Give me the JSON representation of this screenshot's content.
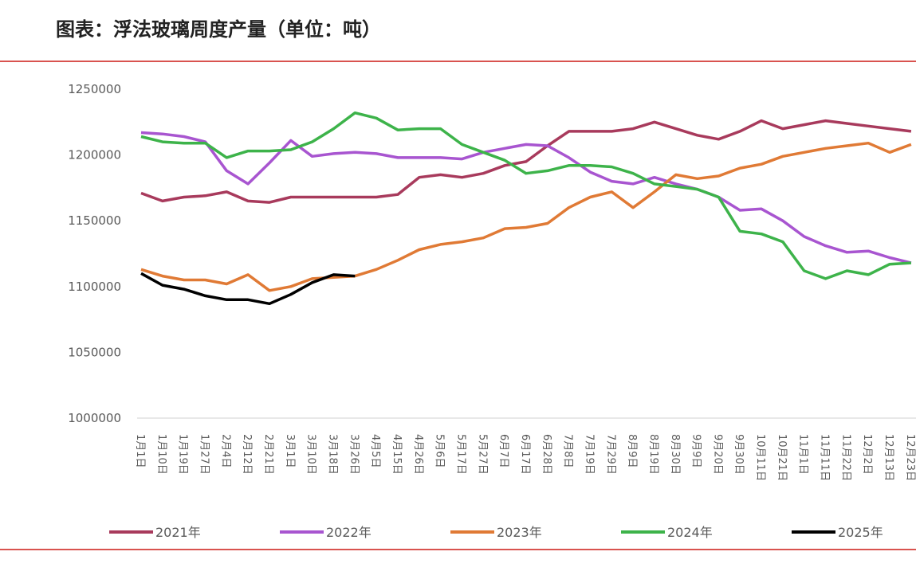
{
  "chart_data": {
    "type": "line",
    "title": "图表：浮法玻璃周度产量（单位：吨）",
    "categories": [
      "1月1日",
      "1月10日",
      "1月19日",
      "1月27日",
      "2月4日",
      "2月12日",
      "2月21日",
      "3月1日",
      "3月10日",
      "3月18日",
      "3月26日",
      "4月5日",
      "4月15日",
      "4月26日",
      "5月6日",
      "5月17日",
      "5月27日",
      "6月7日",
      "6月17日",
      "6月28日",
      "7月8日",
      "7月19日",
      "7月29日",
      "8月9日",
      "8月19日",
      "8月30日",
      "9月9日",
      "9月20日",
      "9月30日",
      "10月11日",
      "10月21日",
      "11月1日",
      "11月11日",
      "11月22日",
      "12月2日",
      "12月13日",
      "12月23日"
    ],
    "series": [
      {
        "name": "2021年",
        "color": "#a83a5c",
        "values": [
          1171000,
          1165000,
          1168000,
          1169000,
          1172000,
          1165000,
          1164000,
          1168000,
          1168000,
          1168000,
          1168000,
          1168000,
          1170000,
          1183000,
          1185000,
          1183000,
          1186000,
          1192000,
          1195000,
          1207000,
          1218000,
          1218000,
          1218000,
          1220000,
          1225000,
          1220000,
          1215000,
          1212000,
          1218000,
          1226000,
          1220000,
          1223000,
          1226000,
          1224000,
          1222000,
          1220000,
          1218000
        ]
      },
      {
        "name": "2022年",
        "color": "#a855d0",
        "values": [
          1217000,
          1216000,
          1214000,
          1210000,
          1188000,
          1178000,
          1194000,
          1211000,
          1199000,
          1201000,
          1202000,
          1201000,
          1198000,
          1198000,
          1198000,
          1197000,
          1202000,
          1205000,
          1208000,
          1207000,
          1198000,
          1187000,
          1180000,
          1178000,
          1183000,
          1178000,
          1174000,
          1168000,
          1158000,
          1159000,
          1150000,
          1138000,
          1131000,
          1126000,
          1127000,
          1122000,
          1118000
        ]
      },
      {
        "name": "2023年",
        "color": "#e07a35",
        "values": [
          1113000,
          1108000,
          1105000,
          1105000,
          1102000,
          1109000,
          1097000,
          1100000,
          1106000,
          1107000,
          1108000,
          1113000,
          1120000,
          1128000,
          1132000,
          1134000,
          1137000,
          1144000,
          1145000,
          1148000,
          1160000,
          1168000,
          1172000,
          1160000,
          1172000,
          1185000,
          1182000,
          1184000,
          1190000,
          1193000,
          1199000,
          1202000,
          1205000,
          1207000,
          1209000,
          1202000,
          1208000
        ]
      },
      {
        "name": "2024年",
        "color": "#3db34a",
        "values": [
          1214000,
          1210000,
          1209000,
          1209000,
          1198000,
          1203000,
          1203000,
          1204000,
          1210000,
          1220000,
          1232000,
          1228000,
          1219000,
          1220000,
          1220000,
          1208000,
          1202000,
          1196000,
          1186000,
          1188000,
          1192000,
          1192000,
          1191000,
          1186000,
          1178000,
          1176000,
          1174000,
          1168000,
          1142000,
          1140000,
          1134000,
          1112000,
          1106000,
          1112000,
          1109000,
          1117000,
          1118000
        ]
      },
      {
        "name": "2025年",
        "color": "#000000",
        "values": [
          1110000,
          1101000,
          1098000,
          1093000,
          1090000,
          1090000,
          1087000,
          1094000,
          1103000,
          1109000,
          1108000,
          null,
          null,
          null,
          null,
          null,
          null,
          null,
          null,
          null,
          null,
          null,
          null,
          null,
          null,
          null,
          null,
          null,
          null,
          null,
          null,
          null,
          null,
          null,
          null,
          null,
          null
        ]
      }
    ],
    "ylim": [
      1000000,
      1250000
    ],
    "yticks": [
      1000000,
      1050000,
      1100000,
      1150000,
      1200000,
      1250000
    ]
  }
}
